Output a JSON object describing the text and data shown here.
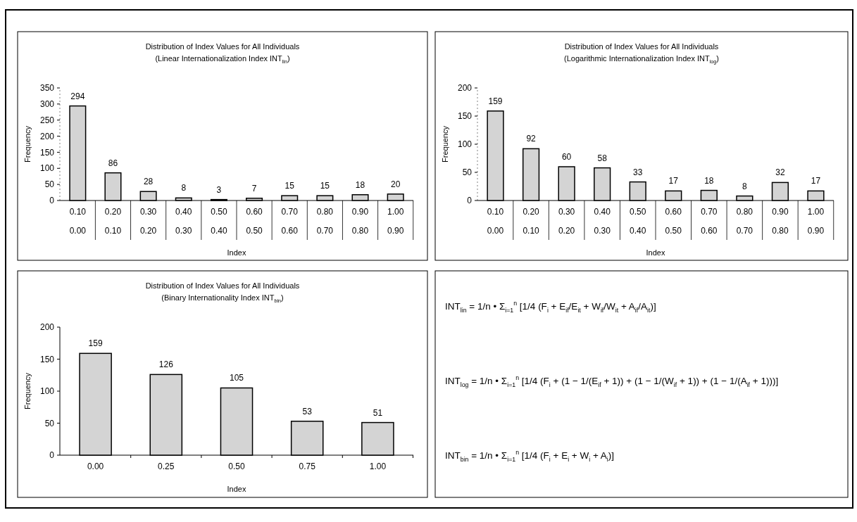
{
  "chart_data": [
    {
      "type": "bar",
      "title": "Distribution of Index Values for All Individuals",
      "subtitle": "(Linear Internationalization Index INT$_{lin}$)",
      "xlabel": "Index",
      "ylabel": "Frequency",
      "categories": [
        "0.10\n0.00",
        "0.20\n0.10",
        "0.30\n0.20",
        "0.40\n0.30",
        "0.50\n0.40",
        "0.60\n0.50",
        "0.70\n0.60",
        "0.80\n0.70",
        "0.90\n0.80",
        "1.00\n0.90"
      ],
      "values": [
        294,
        86,
        28,
        8,
        3,
        7,
        15,
        15,
        18,
        20
      ],
      "color": "#d4d4d4",
      "ylim": [
        0,
        350
      ],
      "yticks": [
        0,
        50,
        100,
        150,
        200,
        250,
        300,
        350
      ],
      "data_labels": true
    },
    {
      "type": "bar",
      "title": "Distribution of Index Values for All Individuals",
      "subtitle": "(Logarithmic Internationalization Index INT$_{log}$)",
      "xlabel": "Index",
      "ylabel": "Frequency",
      "categories": [
        "0.10\n0.00",
        "0.20\n0.10",
        "0.30\n0.20",
        "0.40\n0.30",
        "0.50\n0.40",
        "0.60\n0.50",
        "0.70\n0.60",
        "0.80\n0.70",
        "0.90\n0.80",
        "1.00\n0.90"
      ],
      "values": [
        159,
        92,
        60,
        58,
        33,
        17,
        18,
        8,
        32,
        17
      ],
      "color": "#d4d4d4",
      "ylim": [
        0,
        200
      ],
      "yticks": [
        0,
        50,
        100,
        150,
        200
      ],
      "data_labels": true
    },
    {
      "type": "bar",
      "title": "Distribution of Index Values for All Individuals",
      "subtitle": "(Binary Internationality Index INT$_{bin}$)",
      "xlabel": "Index",
      "ylabel": "Frequency",
      "categories": [
        "0.00",
        "0.25",
        "0.50",
        "0.75",
        "1.00"
      ],
      "values": [
        159,
        126,
        105,
        53,
        51
      ],
      "color": "#d4d4d4",
      "ylim": [
        0,
        200
      ],
      "yticks": [
        0,
        50,
        100,
        150,
        200
      ],
      "data_labels": true
    },
    {
      "type": "other",
      "annotations": [
        "INT$_{lin}$ = 1/n • Σ$_{i=1}$$^{n}$ [1/4 (F$_{i}$ + E$_{if}$/E$_{it}$ + W$_{if}$/W$_{it}$ + A$_{if}$/A$_{it}$)]",
        "INT$_{log}$ = 1/n • Σ$_{i=1}$$^{n}$ [1/4 (F$_{i}$ + (1 − 1/(E$_{if}$ + 1)) + (1 − 1/(W$_{if}$ + 1)) + (1 − 1/(A$_{if}$ + 1)))]",
        "INT$_{bin}$ = 1/n • Σ$_{i=1}$$^{n}$ [1/4 (F$_{i}$ + E$_{i}$ + W$_{i}$ + A$_{i}$)]"
      ]
    }
  ]
}
